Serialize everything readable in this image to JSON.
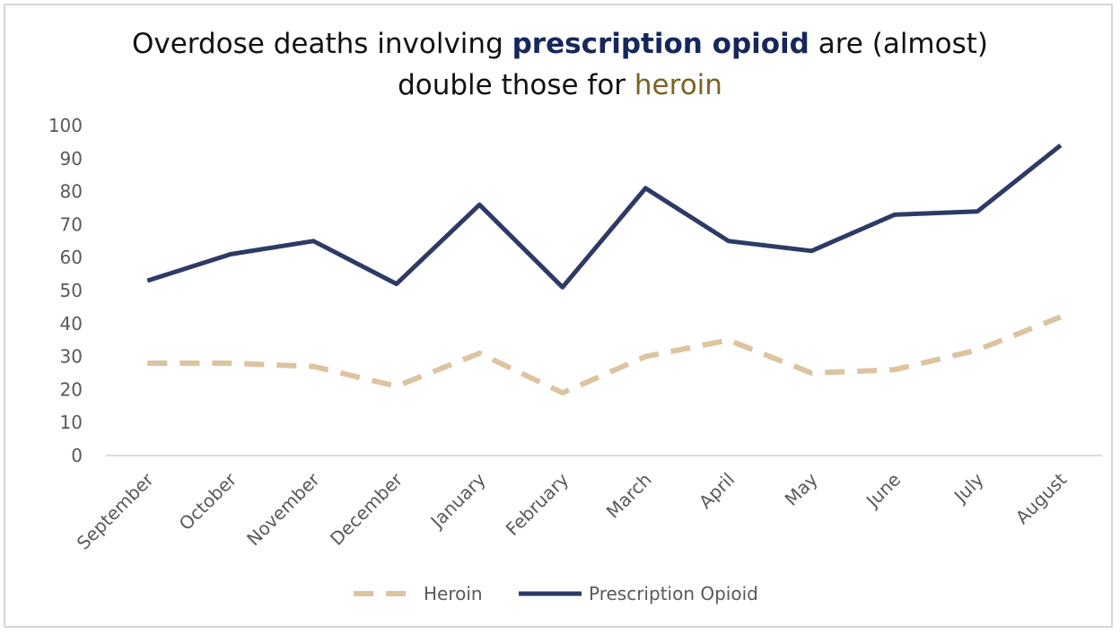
{
  "colors": {
    "heroin": "#dcc4a0",
    "prescription_opioid": "#2e3a66",
    "title_emphasis_1": "#16275c",
    "title_emphasis_2": "#7a6322",
    "axis": "#d9d9d9",
    "text": "#595959"
  },
  "title": {
    "part1": "Overdose deaths involving ",
    "emph1": "prescription opioid",
    "part2": " are (almost)",
    "part3": "double those for ",
    "emph2": "heroin"
  },
  "chart_data": {
    "type": "line",
    "categories": [
      "September",
      "October",
      "November",
      "December",
      "January",
      "February",
      "March",
      "April",
      "May",
      "June",
      "July",
      "August"
    ],
    "series": [
      {
        "name": "Heroin",
        "style": "dashed",
        "color": "#dcc4a0",
        "values": [
          28,
          28,
          27,
          21,
          31,
          19,
          30,
          35,
          25,
          26,
          32,
          42
        ]
      },
      {
        "name": "Prescription Opioid",
        "style": "solid",
        "color": "#2e3a66",
        "values": [
          53,
          61,
          65,
          52,
          76,
          51,
          81,
          65,
          62,
          73,
          74,
          94
        ]
      }
    ],
    "ylim": [
      0,
      100
    ],
    "yticks": [
      0,
      10,
      20,
      30,
      40,
      50,
      60,
      70,
      80,
      90,
      100
    ],
    "grid": false,
    "legend_position": "bottom"
  }
}
